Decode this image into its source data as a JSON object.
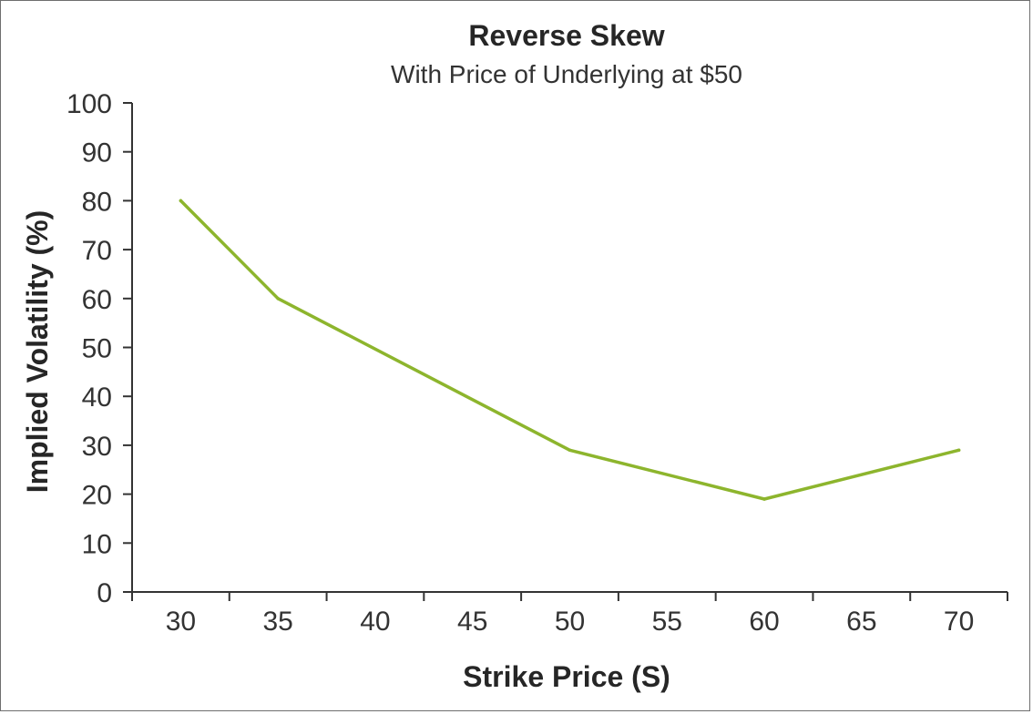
{
  "chart_data": {
    "type": "line",
    "title": "Reverse Skew",
    "subtitle": "With Price of Underlying at $50",
    "xlabel": "Strike Price (S)",
    "ylabel": "Implied Volatility (%)",
    "x_ticks": [
      30,
      35,
      40,
      45,
      50,
      55,
      60,
      65,
      70
    ],
    "y_ticks": [
      0,
      10,
      20,
      30,
      40,
      50,
      60,
      70,
      80,
      90,
      100
    ],
    "xlim": [
      27.5,
      72.5
    ],
    "ylim": [
      0,
      100
    ],
    "grid": false,
    "legend": false,
    "series": [
      {
        "x": [
          30,
          35,
          50,
          60,
          70
        ],
        "y": [
          80,
          60,
          29,
          19,
          29
        ],
        "color": "#8db52d"
      }
    ]
  }
}
